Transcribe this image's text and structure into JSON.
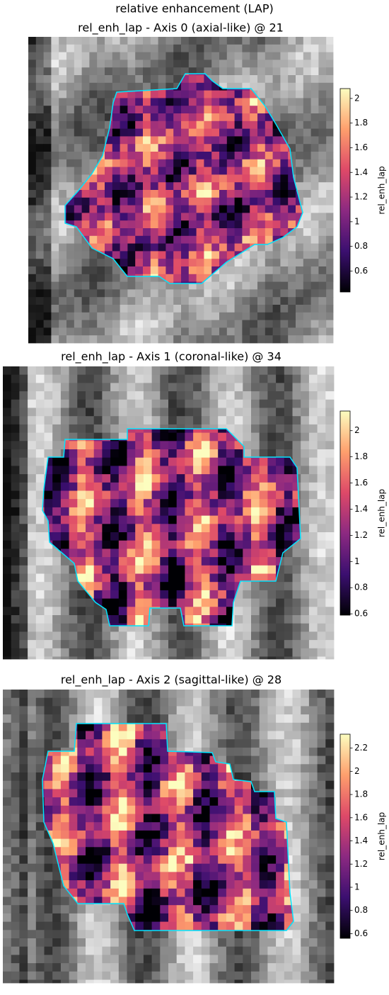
{
  "title": "relative enhancement (LAP)",
  "colormap": [
    "#000004",
    "#3b0f70",
    "#8c2981",
    "#de4968",
    "#fe9f6d",
    "#fcfdbf"
  ],
  "outline_color": "#00e5ff",
  "chart_data": [
    {
      "type": "heatmap",
      "title": "rel_enh_lap - Axis 0 (axial-like) @ 21",
      "colorbar_label": "rel_enh_lap",
      "clim": [
        0.43,
        2.08
      ],
      "cticks": [
        0.6,
        0.8,
        1.0,
        1.2,
        1.4,
        1.6,
        1.8,
        2.0
      ]
    },
    {
      "type": "heatmap",
      "title": "rel_enh_lap - Axis 1 (coronal-like) @ 34",
      "colorbar_label": "rel_enh_lap",
      "clim": [
        0.59,
        2.15
      ],
      "cticks": [
        0.6,
        0.8,
        1.0,
        1.2,
        1.4,
        1.6,
        1.8,
        2.0
      ]
    },
    {
      "type": "heatmap",
      "title": "rel_enh_lap - Axis 2 (sagittal-like) @ 28",
      "colorbar_label": "rel_enh_lap",
      "clim": [
        0.56,
        2.32
      ],
      "cticks": [
        0.6,
        0.8,
        1.0,
        1.2,
        1.4,
        1.6,
        1.8,
        2.0,
        2.2
      ]
    }
  ]
}
